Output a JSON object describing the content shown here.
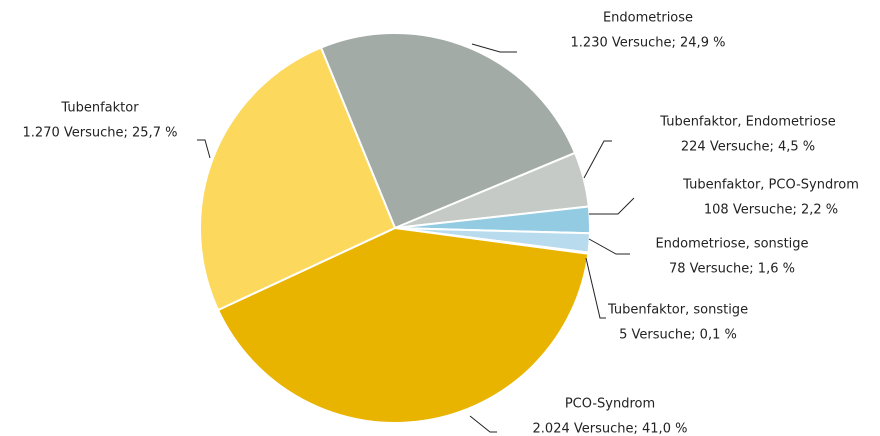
{
  "chart_data": {
    "type": "pie",
    "categories": [
      "Endometriose",
      "Tubenfaktor, Endometriose",
      "Tubenfaktor, PCO-Syndrom",
      "Endometriose, sonstige",
      "Tubenfaktor, sonstige",
      "PCO-Syndrom",
      "Tubenfaktor"
    ],
    "values": [
      1230,
      224,
      108,
      78,
      5,
      2024,
      1270
    ],
    "value_labels": [
      "1.230 Versuche; 24,9 %",
      "224 Versuche; 4,5 %",
      "108 Versuche; 2,2 %",
      "78 Versuche; 1,6 %",
      "5 Versuche; 0,1 %",
      "2.024 Versuche; 41,0 %",
      "1.270 Versuche; 25,7 %"
    ],
    "colors": [
      "#a3aba6",
      "#c5cac7",
      "#93cbe3",
      "#b8dced",
      "#111111",
      "#e8b400",
      "#fcd95c"
    ]
  }
}
